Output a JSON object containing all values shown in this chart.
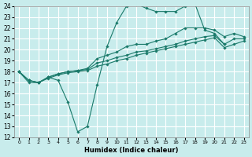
{
  "xlabel": "Humidex (Indice chaleur)",
  "bg_color": "#c8ecec",
  "grid_color": "#ffffff",
  "line_color": "#1a7a6a",
  "xlim": [
    -0.5,
    23.5
  ],
  "ylim": [
    12,
    24
  ],
  "xticks": [
    0,
    1,
    2,
    3,
    4,
    5,
    6,
    7,
    8,
    9,
    10,
    11,
    12,
    13,
    14,
    15,
    16,
    17,
    18,
    19,
    20,
    21,
    22,
    23
  ],
  "yticks": [
    12,
    13,
    14,
    15,
    16,
    17,
    18,
    19,
    20,
    21,
    22,
    23,
    24
  ],
  "series": [
    [
      18.0,
      17.0,
      17.0,
      17.5,
      17.2,
      15.2,
      12.5,
      13.0,
      16.8,
      20.3,
      22.5,
      24.0,
      24.2,
      23.8,
      23.5,
      23.5,
      23.5,
      24.0,
      24.2,
      21.8,
      21.5,
      20.5,
      null,
      null
    ],
    [
      18.0,
      17.2,
      17.0,
      17.5,
      17.8,
      18.0,
      18.1,
      18.3,
      19.2,
      19.5,
      19.8,
      20.3,
      20.5,
      20.5,
      20.8,
      21.0,
      21.5,
      22.0,
      22.0,
      22.0,
      21.8,
      21.2,
      21.5,
      21.2
    ],
    [
      18.0,
      17.2,
      17.0,
      17.5,
      17.8,
      18.0,
      18.1,
      18.2,
      18.8,
      19.0,
      19.3,
      19.5,
      19.8,
      19.9,
      20.1,
      20.3,
      20.5,
      20.8,
      21.0,
      21.2,
      21.3,
      20.5,
      21.0,
      21.0
    ],
    [
      18.0,
      17.2,
      17.0,
      17.4,
      17.7,
      17.9,
      18.0,
      18.1,
      18.5,
      18.7,
      19.0,
      19.2,
      19.5,
      19.7,
      19.9,
      20.1,
      20.3,
      20.5,
      20.7,
      20.9,
      21.1,
      20.2,
      20.5,
      20.8
    ]
  ],
  "marker_indices": [
    [
      0,
      1,
      2,
      3,
      4,
      5,
      6,
      7,
      8,
      9,
      10,
      11,
      12,
      13,
      14,
      15,
      16,
      17,
      18,
      19,
      20,
      21
    ],
    [
      0,
      1,
      2,
      3,
      4,
      5,
      6,
      7,
      8,
      9,
      10,
      11,
      12,
      13,
      14,
      15,
      16,
      17,
      18,
      19,
      20,
      21,
      22,
      23
    ],
    [
      0,
      1,
      2,
      3,
      4,
      5,
      6,
      7,
      8,
      9,
      10,
      11,
      12,
      13,
      14,
      15,
      16,
      17,
      18,
      19,
      20,
      21,
      22,
      23
    ],
    [
      0,
      1,
      2,
      3,
      4,
      5,
      6,
      7,
      8,
      9,
      10,
      11,
      12,
      13,
      14,
      15,
      16,
      17,
      18,
      19,
      20,
      21,
      22,
      23
    ]
  ]
}
